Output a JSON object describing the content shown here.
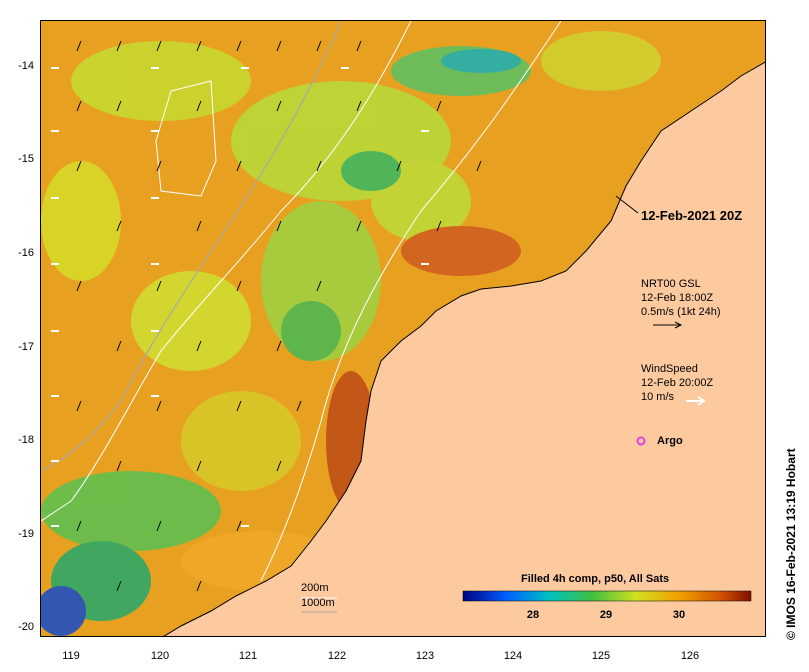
{
  "map": {
    "y_ticks": [
      "-14",
      "-15",
      "-16",
      "-17",
      "-18",
      "-19",
      "-20"
    ],
    "x_ticks": [
      "119",
      "120",
      "121",
      "122",
      "123",
      "124",
      "125",
      "126"
    ],
    "date_stamp": "12-Feb-2021 20Z",
    "current_legend": {
      "line1": "NRT00 GSL",
      "line2": "12-Feb 18:00Z",
      "line3": "0.5m/s (1kt 24h)"
    },
    "wind_legend": {
      "line1": "WindSpeed",
      "line2": "12-Feb 20:00Z",
      "line3": "10 m/s"
    },
    "argo_label": "Argo",
    "isobaths": {
      "shallow": "200m",
      "deep": "1000m"
    },
    "colorbar": {
      "title": "Filled 4h comp, p50, All Sats",
      "labels": [
        "28",
        "29",
        "30"
      ]
    },
    "credit": "© IMOS 16-Feb-2021 13:19 Hobart",
    "colors": {
      "land": "#fdcaa0",
      "argo": "#e040e0",
      "wind_arrow": "#ffffff",
      "current_arrow": "#000000"
    }
  }
}
